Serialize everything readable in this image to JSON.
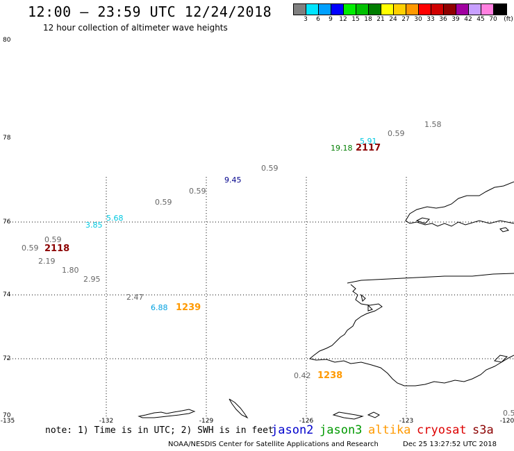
{
  "header": {
    "title": "12:00 — 23:59 UTC 12/24/2018",
    "subtitle": "12 hour collection of altimeter wave heights"
  },
  "colorbar": {
    "unit": "(ft)",
    "swatches": [
      {
        "color": "#808080",
        "label": "3"
      },
      {
        "color": "#00e5ff",
        "label": "6"
      },
      {
        "color": "#00a0ff",
        "label": "9"
      },
      {
        "color": "#0000ff",
        "label": "12"
      },
      {
        "color": "#00ee00",
        "label": "15"
      },
      {
        "color": "#00c000",
        "label": "18"
      },
      {
        "color": "#007d00",
        "label": "21"
      },
      {
        "color": "#ffff00",
        "label": "24"
      },
      {
        "color": "#ffd000",
        "label": "27"
      },
      {
        "color": "#ff9900",
        "label": "30"
      },
      {
        "color": "#ff0000",
        "label": "33"
      },
      {
        "color": "#d00000",
        "label": "36"
      },
      {
        "color": "#900000",
        "label": "39"
      },
      {
        "color": "#a000a0",
        "label": "42"
      },
      {
        "color": "#c8a0ff",
        "label": "45"
      },
      {
        "color": "#ff80e0",
        "label": "70"
      },
      {
        "color": "#000000",
        "label": ""
      }
    ]
  },
  "axes": {
    "lat_labels": [
      "80",
      "78",
      "76",
      "74",
      "72",
      "70"
    ],
    "lon_labels": [
      "-135",
      "-132",
      "-129",
      "-126",
      "-123",
      "-120"
    ]
  },
  "observations": [
    {
      "text": "1.58",
      "color": "#666666"
    },
    {
      "text": "0.59",
      "color": "#666666"
    },
    {
      "text": "5.91",
      "color": "#00c8e0"
    },
    {
      "text": "19.18",
      "color": "#007d00"
    },
    {
      "text": "2117",
      "color": "#8b0000"
    },
    {
      "text": "0.59",
      "color": "#666666"
    },
    {
      "text": "9.45",
      "color": "#00008b"
    },
    {
      "text": "0.59",
      "color": "#666666"
    },
    {
      "text": "0.59",
      "color": "#666666"
    },
    {
      "text": "5.68",
      "color": "#00c8e0"
    },
    {
      "text": "3.85",
      "color": "#00c8e0"
    },
    {
      "text": "0.59",
      "color": "#666666"
    },
    {
      "text": "0.59",
      "color": "#666666"
    },
    {
      "text": "2118",
      "color": "#8b0000"
    },
    {
      "text": "2.19",
      "color": "#666666"
    },
    {
      "text": "1.80",
      "color": "#666666"
    },
    {
      "text": "2.95",
      "color": "#666666"
    },
    {
      "text": "2.47",
      "color": "#666666"
    },
    {
      "text": "6.88",
      "color": "#00a0e0"
    },
    {
      "text": "1239",
      "color": "#ff9900"
    },
    {
      "text": "0.42",
      "color": "#666666"
    },
    {
      "text": "1238",
      "color": "#ff9900"
    },
    {
      "text": "0.5",
      "color": "#666666"
    }
  ],
  "footer": {
    "note": "note: 1) Time is in UTC; 2) SWH is in feet",
    "legend": [
      {
        "name": "jason2",
        "color": "#0000cc"
      },
      {
        "name": "jason3",
        "color": "#009900"
      },
      {
        "name": "altika",
        "color": "#ff9900"
      },
      {
        "name": "cryosat",
        "color": "#dd0000"
      },
      {
        "name": "s3a",
        "color": "#8b0000"
      }
    ],
    "credit": "NOAA/NESDIS Center for Satellite Applications and Research",
    "timestamp": "Dec 25 13:27:52 UTC 2018"
  }
}
